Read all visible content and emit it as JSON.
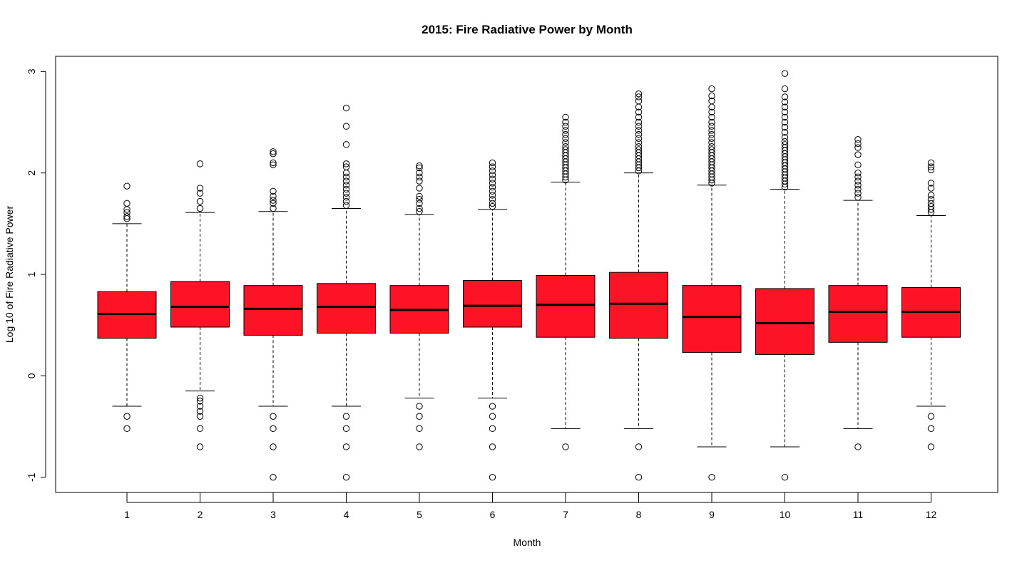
{
  "chart_data": {
    "type": "box",
    "title": "2015: Fire Radiative Power by Month",
    "xlabel": "Month",
    "ylabel": "Log 10 of Fire Radiative Power",
    "ylim": [
      -1.15,
      3.15
    ],
    "yticks": [
      "-1",
      "0",
      "1",
      "2",
      "3"
    ],
    "box_color": "#FC1426",
    "categories": [
      "1",
      "2",
      "3",
      "4",
      "5",
      "6",
      "7",
      "8",
      "9",
      "10",
      "11",
      "12"
    ],
    "boxes": [
      {
        "month": "1",
        "q1": 0.37,
        "median": 0.61,
        "q3": 0.83,
        "whisker_low": -0.3,
        "whisker_high": 1.5,
        "outliers_low": [
          -0.4,
          -0.52
        ],
        "outliers_high": [
          1.55,
          1.57,
          1.61,
          1.64,
          1.7,
          1.87
        ]
      },
      {
        "month": "2",
        "q1": 0.48,
        "median": 0.68,
        "q3": 0.93,
        "whisker_low": -0.15,
        "whisker_high": 1.61,
        "outliers_low": [
          -0.22,
          -0.25,
          -0.3,
          -0.35,
          -0.4,
          -0.52,
          -0.7
        ],
        "outliers_high": [
          1.65,
          1.72,
          1.8,
          1.85,
          2.09
        ]
      },
      {
        "month": "3",
        "q1": 0.4,
        "median": 0.66,
        "q3": 0.89,
        "whisker_low": -0.3,
        "whisker_high": 1.62,
        "outliers_low": [
          -0.4,
          -0.52,
          -0.7,
          -1.0
        ],
        "outliers_high": [
          1.65,
          1.7,
          1.73,
          1.77,
          1.82,
          2.08,
          2.1,
          2.19,
          2.21
        ]
      },
      {
        "month": "4",
        "q1": 0.42,
        "median": 0.68,
        "q3": 0.91,
        "whisker_low": -0.3,
        "whisker_high": 1.65,
        "outliers_low": [
          -0.4,
          -0.52,
          -0.7,
          -1.0
        ],
        "outliers_high": [
          1.68,
          1.72,
          1.76,
          1.8,
          1.84,
          1.88,
          1.92,
          1.96,
          2.0,
          2.06,
          2.09,
          2.28,
          2.46,
          2.64
        ]
      },
      {
        "month": "5",
        "q1": 0.42,
        "median": 0.65,
        "q3": 0.89,
        "whisker_low": -0.22,
        "whisker_high": 1.59,
        "outliers_low": [
          -0.3,
          -0.4,
          -0.52,
          -0.7
        ],
        "outliers_high": [
          1.62,
          1.65,
          1.7,
          1.74,
          1.77,
          1.85,
          1.92,
          1.96,
          2.0,
          2.05,
          2.07
        ]
      },
      {
        "month": "6",
        "q1": 0.48,
        "median": 0.69,
        "q3": 0.94,
        "whisker_low": -0.22,
        "whisker_high": 1.64,
        "outliers_low": [
          -0.3,
          -0.4,
          -0.52,
          -0.7,
          -1.0
        ],
        "outliers_high": [
          1.67,
          1.7,
          1.74,
          1.78,
          1.82,
          1.86,
          1.9,
          1.94,
          1.98,
          2.02,
          2.06,
          2.1
        ]
      },
      {
        "month": "7",
        "q1": 0.38,
        "median": 0.7,
        "q3": 0.99,
        "whisker_low": -0.52,
        "whisker_high": 1.91,
        "outliers_low": [
          -0.7
        ],
        "outliers_high": [
          1.93,
          1.96,
          1.99,
          2.02,
          2.05,
          2.08,
          2.11,
          2.14,
          2.17,
          2.2,
          2.23,
          2.26,
          2.3,
          2.34,
          2.38,
          2.42,
          2.46,
          2.5,
          2.55
        ]
      },
      {
        "month": "8",
        "q1": 0.37,
        "median": 0.71,
        "q3": 1.02,
        "whisker_low": -0.52,
        "whisker_high": 2.0,
        "outliers_low": [
          -0.7,
          -1.0
        ],
        "outliers_high": [
          2.02,
          2.05,
          2.08,
          2.11,
          2.14,
          2.17,
          2.2,
          2.23,
          2.26,
          2.3,
          2.34,
          2.38,
          2.42,
          2.46,
          2.5,
          2.55,
          2.6,
          2.65,
          2.71,
          2.75,
          2.78
        ]
      },
      {
        "month": "9",
        "q1": 0.23,
        "median": 0.58,
        "q3": 0.89,
        "whisker_low": -0.7,
        "whisker_high": 1.88,
        "outliers_low": [
          -1.0
        ],
        "outliers_high": [
          1.9,
          1.93,
          1.96,
          1.99,
          2.02,
          2.05,
          2.08,
          2.11,
          2.14,
          2.17,
          2.2,
          2.23,
          2.26,
          2.3,
          2.34,
          2.38,
          2.42,
          2.46,
          2.5,
          2.55,
          2.6,
          2.65,
          2.71,
          2.76,
          2.83
        ]
      },
      {
        "month": "10",
        "q1": 0.21,
        "median": 0.52,
        "q3": 0.86,
        "whisker_low": -0.7,
        "whisker_high": 1.84,
        "outliers_low": [
          -1.0
        ],
        "outliers_high": [
          1.86,
          1.89,
          1.92,
          1.95,
          1.98,
          2.01,
          2.04,
          2.07,
          2.1,
          2.13,
          2.16,
          2.19,
          2.22,
          2.25,
          2.28,
          2.31,
          2.35,
          2.4,
          2.45,
          2.5,
          2.55,
          2.6,
          2.65,
          2.7,
          2.75,
          2.83,
          2.98
        ]
      },
      {
        "month": "11",
        "q1": 0.33,
        "median": 0.63,
        "q3": 0.89,
        "whisker_low": -0.52,
        "whisker_high": 1.73,
        "outliers_low": [
          -0.7
        ],
        "outliers_high": [
          1.76,
          1.8,
          1.84,
          1.88,
          1.92,
          1.96,
          2.0,
          2.08,
          2.18,
          2.25,
          2.29,
          2.33
        ]
      },
      {
        "month": "12",
        "q1": 0.38,
        "median": 0.63,
        "q3": 0.87,
        "whisker_low": -0.3,
        "whisker_high": 1.58,
        "outliers_low": [
          -0.4,
          -0.52,
          -0.7
        ],
        "outliers_high": [
          1.61,
          1.64,
          1.67,
          1.7,
          1.74,
          1.78,
          1.85,
          1.9,
          2.03,
          2.06,
          2.1
        ]
      }
    ]
  }
}
